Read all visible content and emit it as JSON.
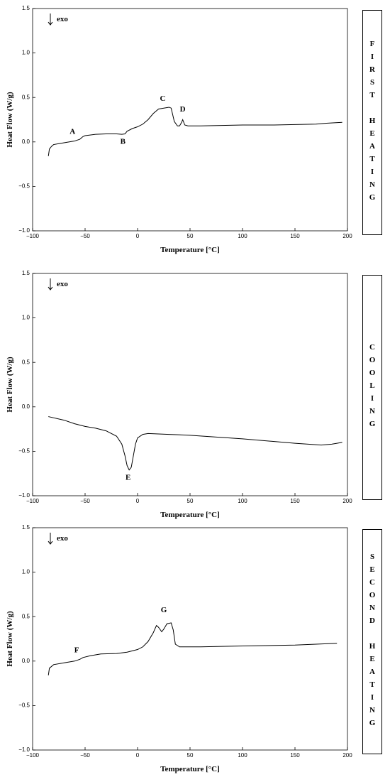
{
  "chart_data": [
    {
      "type": "line",
      "side_label": "FIRST HEATING",
      "xlabel": "Temperature [°C]",
      "ylabel": "Heat Flow (W/g)",
      "exo_label": "exo",
      "annotations": [
        "A",
        "B",
        "C",
        "D"
      ],
      "xlim": [
        -100,
        200
      ],
      "ylim": [
        -1.0,
        1.5
      ],
      "xticks": [
        {
          "value": -100,
          "label": "−100"
        },
        {
          "value": -50,
          "label": "−50"
        },
        0,
        50,
        100,
        150,
        200
      ],
      "yticks": [
        {
          "value": -1.0,
          "label": "−1.0"
        },
        {
          "value": -0.5,
          "label": "−0.5"
        },
        {
          "value": 0.0,
          "label": "0.0"
        },
        {
          "value": 0.5,
          "label": "0.5"
        },
        {
          "value": 1.0,
          "label": "1.0"
        },
        {
          "value": 1.5,
          "label": "1.5"
        }
      ],
      "color": "#000000",
      "x": [
        -85,
        -84,
        -82,
        -80,
        -75,
        -70,
        -60,
        -55,
        -52,
        -50,
        -40,
        -30,
        -20,
        -15,
        -12,
        -10,
        -5,
        0,
        5,
        10,
        15,
        20,
        25,
        30,
        32,
        35,
        38,
        40,
        42,
        43,
        45,
        48,
        50,
        60,
        80,
        100,
        120,
        130,
        150,
        170,
        180,
        195
      ],
      "values": [
        -0.16,
        -0.08,
        -0.05,
        -0.03,
        -0.02,
        -0.01,
        0.01,
        0.03,
        0.06,
        0.07,
        0.085,
        0.09,
        0.09,
        0.085,
        0.09,
        0.12,
        0.15,
        0.17,
        0.2,
        0.25,
        0.32,
        0.37,
        0.38,
        0.39,
        0.38,
        0.23,
        0.18,
        0.18,
        0.22,
        0.25,
        0.19,
        0.18,
        0.18,
        0.18,
        0.185,
        0.19,
        0.19,
        0.19,
        0.195,
        0.2,
        0.21,
        0.22
      ]
    },
    {
      "type": "line",
      "side_label": "COOLING",
      "xlabel": "Temperature [°C]",
      "ylabel": "Heat Flow (W/g)",
      "exo_label": "exo",
      "annotations": [
        "E"
      ],
      "xlim": [
        -100,
        200
      ],
      "ylim": [
        -1.0,
        1.5
      ],
      "xticks": [
        {
          "value": -100,
          "label": "−100"
        },
        {
          "value": -50,
          "label": "−50"
        },
        0,
        50,
        100,
        150,
        200
      ],
      "yticks": [
        {
          "value": -1.0,
          "label": "−1.0"
        },
        {
          "value": -0.5,
          "label": "−0.5"
        },
        {
          "value": 0.0,
          "label": "0.0"
        },
        {
          "value": 0.5,
          "label": "0.5"
        },
        {
          "value": 1.0,
          "label": "1.0"
        },
        {
          "value": 1.5,
          "label": "1.5"
        }
      ],
      "color": "#000000",
      "x": [
        -85,
        -70,
        -60,
        -50,
        -40,
        -30,
        -20,
        -15,
        -12,
        -10,
        -8,
        -6,
        -4,
        -2,
        0,
        5,
        10,
        30,
        50,
        100,
        150,
        175,
        185,
        195
      ],
      "values": [
        -0.11,
        -0.15,
        -0.19,
        -0.22,
        -0.24,
        -0.27,
        -0.33,
        -0.42,
        -0.55,
        -0.66,
        -0.71,
        -0.68,
        -0.55,
        -0.42,
        -0.35,
        -0.31,
        -0.3,
        -0.31,
        -0.32,
        -0.36,
        -0.41,
        -0.43,
        -0.42,
        -0.4
      ]
    },
    {
      "type": "line",
      "side_label": "SECOND HEATING",
      "xlabel": "Temperature [°C]",
      "ylabel": "Heat Flow (W/g)",
      "exo_label": "exo",
      "annotations": [
        "F",
        "G"
      ],
      "xlim": [
        -100,
        200
      ],
      "ylim": [
        -1.0,
        1.5
      ],
      "xticks": [
        {
          "value": -100,
          "label": "−100"
        },
        {
          "value": -50,
          "label": "−50"
        },
        0,
        50,
        100,
        150,
        200
      ],
      "yticks": [
        {
          "value": -1.0,
          "label": "−1.0"
        },
        {
          "value": -0.5,
          "label": "−0.5"
        },
        {
          "value": 0.0,
          "label": "0.0"
        },
        {
          "value": 0.5,
          "label": "0.5"
        },
        {
          "value": 1.0,
          "label": "1.0"
        },
        {
          "value": 1.5,
          "label": "1.5"
        }
      ],
      "color": "#000000",
      "x": [
        -85,
        -84,
        -80,
        -70,
        -60,
        -55,
        -52,
        -45,
        -35,
        -20,
        -10,
        0,
        5,
        10,
        15,
        18,
        20,
        23,
        25,
        28,
        32,
        34,
        36,
        40,
        60,
        100,
        150,
        190
      ],
      "values": [
        -0.16,
        -0.08,
        -0.04,
        -0.02,
        0.0,
        0.02,
        0.04,
        0.06,
        0.08,
        0.085,
        0.1,
        0.13,
        0.16,
        0.22,
        0.32,
        0.4,
        0.38,
        0.33,
        0.36,
        0.42,
        0.43,
        0.35,
        0.19,
        0.16,
        0.16,
        0.17,
        0.18,
        0.2
      ]
    }
  ]
}
